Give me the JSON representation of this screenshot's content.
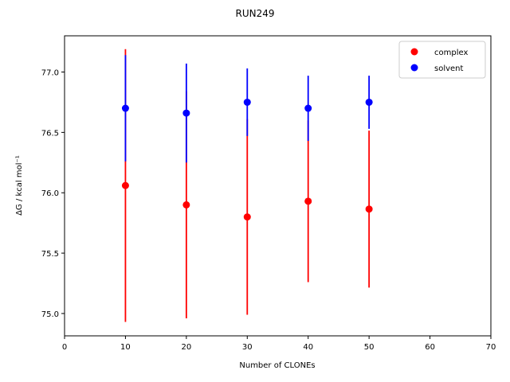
{
  "chart_data": {
    "type": "errorbar-scatter",
    "title": "RUN249",
    "x_label": "Number of CLONEs",
    "y_label": "ΔG / kcal mol⁻¹",
    "xlim": [
      0,
      70
    ],
    "xticks": [
      0,
      10,
      20,
      30,
      40,
      50,
      60,
      70
    ],
    "ylim": [
      74.815,
      77.3
    ],
    "yticks": [
      {
        "value": 75,
        "label": "75.0"
      },
      75.5,
      {
        "value": 76,
        "label": "76.0"
      },
      76.5,
      {
        "value": 77,
        "label": "77.0"
      }
    ],
    "legend": "upper right",
    "series": [
      {
        "name": "complex",
        "color": "#ff0000",
        "x": [
          10,
          20,
          30,
          40,
          50
        ],
        "values": [
          76.06,
          75.9,
          75.8,
          75.93,
          75.865
        ],
        "errors": [
          1.13,
          0.94,
          0.81,
          0.67,
          0.65
        ]
      },
      {
        "name": "solvent",
        "color": "#0000ff",
        "x": [
          10,
          20,
          30,
          40,
          50
        ],
        "values": [
          76.7,
          76.66,
          76.75,
          76.7,
          76.75
        ],
        "errors": [
          0.44,
          0.41,
          0.28,
          0.27,
          0.22
        ]
      }
    ]
  }
}
